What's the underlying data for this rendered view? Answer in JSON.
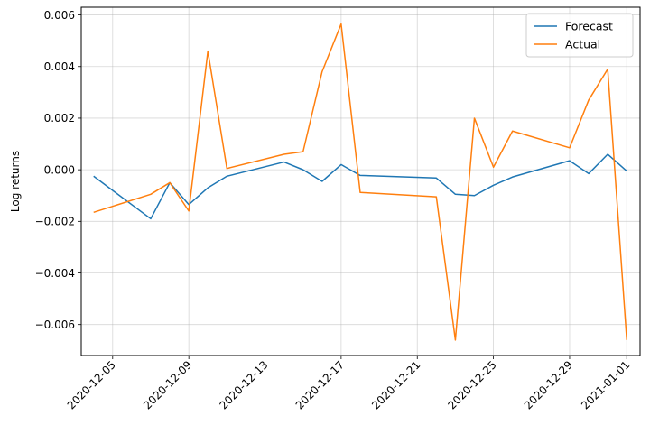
{
  "chart_data": {
    "type": "line",
    "title": "",
    "xlabel": "",
    "ylabel": "Log returns",
    "x_ticks": [
      "2020-12-05",
      "2020-12-09",
      "2020-12-13",
      "2020-12-17",
      "2020-12-21",
      "2020-12-25",
      "2020-12-29",
      "2021-01-01"
    ],
    "y_ticks": [
      "−0.006",
      "−0.004",
      "−0.002",
      "0.000",
      "0.002",
      "0.004",
      "0.006"
    ],
    "ylim": [
      -0.0072,
      0.0063
    ],
    "xlim": [
      "2020-12-03",
      "2021-01-01"
    ],
    "grid": true,
    "legend_position": "top-right",
    "series": [
      {
        "name": "Forecast",
        "color": "#1f77b4",
        "points": [
          [
            "2020-12-04",
            -0.00025
          ],
          [
            "2020-12-07",
            -0.0019
          ],
          [
            "2020-12-08",
            -0.0005
          ],
          [
            "2020-12-09",
            -0.00135
          ],
          [
            "2020-12-10",
            -0.0007
          ],
          [
            "2020-12-11",
            -0.00025
          ],
          [
            "2020-12-14",
            0.0003
          ],
          [
            "2020-12-15",
            0.0
          ],
          [
            "2020-12-16",
            -0.00045
          ],
          [
            "2020-12-17",
            0.0002
          ],
          [
            "2020-12-18",
            -0.00022
          ],
          [
            "2020-12-22",
            -0.00032
          ],
          [
            "2020-12-23",
            -0.00095
          ],
          [
            "2020-12-24",
            -0.001
          ],
          [
            "2020-12-25",
            -0.0006
          ],
          [
            "2020-12-26",
            -0.00028
          ],
          [
            "2020-12-29",
            0.00035
          ],
          [
            "2020-12-30",
            -0.00015
          ],
          [
            "2020-12-31",
            0.0006
          ],
          [
            "2021-01-01",
            -5e-05
          ]
        ]
      },
      {
        "name": "Actual",
        "color": "#ff7f0e",
        "points": [
          [
            "2020-12-04",
            -0.00165
          ],
          [
            "2020-12-07",
            -0.00095
          ],
          [
            "2020-12-08",
            -0.0005
          ],
          [
            "2020-12-09",
            -0.0016
          ],
          [
            "2020-12-10",
            0.0046
          ],
          [
            "2020-12-11",
            5e-05
          ],
          [
            "2020-12-14",
            0.0006
          ],
          [
            "2020-12-15",
            0.0007
          ],
          [
            "2020-12-16",
            0.0038
          ],
          [
            "2020-12-17",
            0.00565
          ],
          [
            "2020-12-18",
            -0.00088
          ],
          [
            "2020-12-22",
            -0.00105
          ],
          [
            "2020-12-23",
            -0.0066
          ],
          [
            "2020-12-24",
            0.002
          ],
          [
            "2020-12-25",
            0.0001
          ],
          [
            "2020-12-26",
            0.0015
          ],
          [
            "2020-12-29",
            0.00085
          ],
          [
            "2020-12-30",
            0.0027
          ],
          [
            "2020-12-31",
            0.0039
          ],
          [
            "2021-01-01",
            -0.0066
          ]
        ]
      }
    ]
  }
}
